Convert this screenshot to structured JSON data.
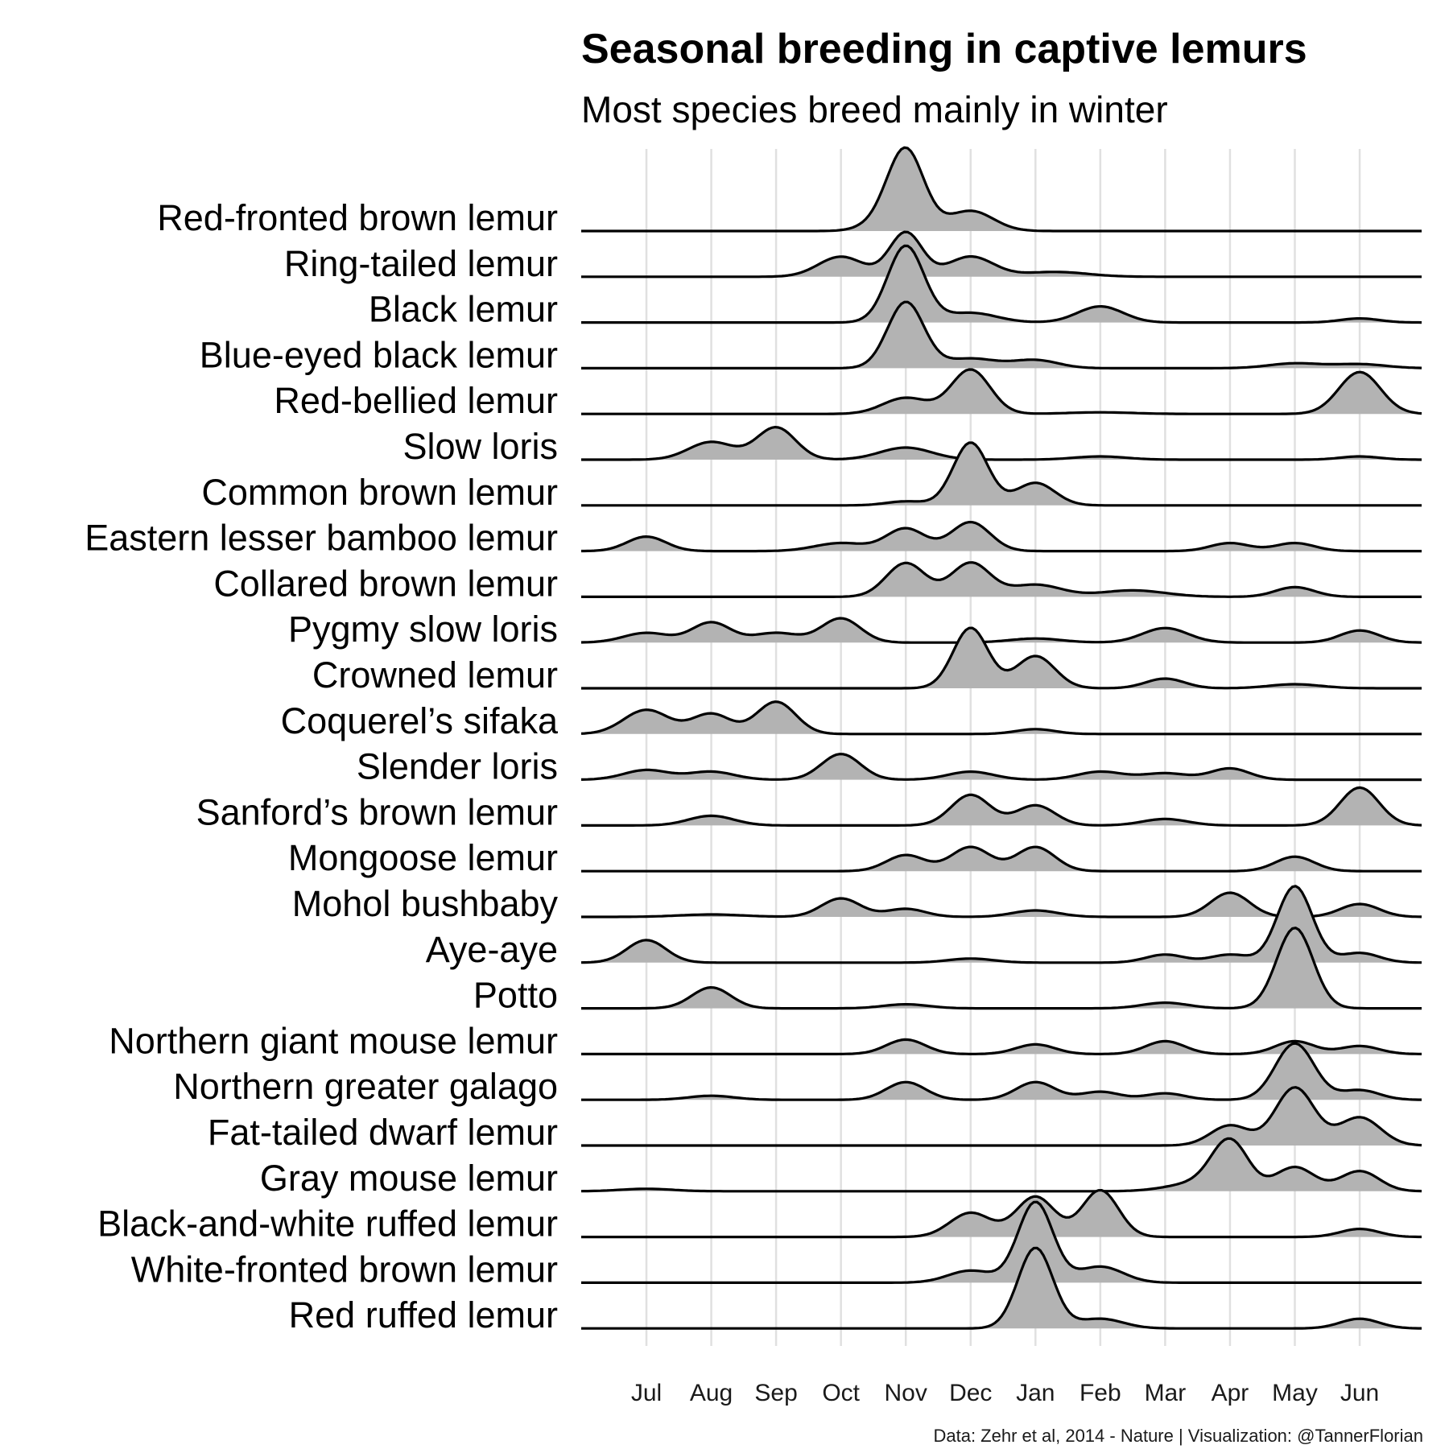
{
  "chart_data": {
    "type": "ridgeline",
    "title": "Seasonal breeding in captive lemurs",
    "subtitle": "Most species breed mainly in winter",
    "caption": "Data: Zehr et al, 2014 - Nature | Visualization: @TannerFlorian",
    "months": [
      "Jul",
      "Aug",
      "Sep",
      "Oct",
      "Nov",
      "Dec",
      "Jan",
      "Feb",
      "Mar",
      "Apr",
      "May",
      "Jun"
    ],
    "fill_color": "#b3b3b3",
    "line_color": "#000000",
    "grid_color": "#e0e0e0",
    "grid": true,
    "x_range": [
      -1,
      12
    ],
    "peaks_unit": "month index (0 = Jul) with relative density height",
    "species": [
      {
        "name": "Red-fronted brown lemur",
        "peaks": [
          [
            4,
            1.0,
            0.28
          ],
          [
            5,
            0.25,
            0.35
          ],
          [
            3.6,
            0.08,
            0.3
          ]
        ]
      },
      {
        "name": "Ring-tailed lemur",
        "peaks": [
          [
            3,
            0.25,
            0.35
          ],
          [
            4,
            0.55,
            0.25
          ],
          [
            5,
            0.25,
            0.35
          ],
          [
            6.3,
            0.06,
            0.5
          ]
        ]
      },
      {
        "name": "Black lemur",
        "peaks": [
          [
            4,
            0.95,
            0.28
          ],
          [
            5,
            0.12,
            0.4
          ],
          [
            7,
            0.2,
            0.35
          ],
          [
            11,
            0.05,
            0.3
          ]
        ]
      },
      {
        "name": "Blue-eyed black lemur",
        "peaks": [
          [
            4,
            0.82,
            0.28
          ],
          [
            5,
            0.12,
            0.4
          ],
          [
            6,
            0.1,
            0.35
          ],
          [
            10,
            0.06,
            0.4
          ],
          [
            11,
            0.05,
            0.4
          ]
        ]
      },
      {
        "name": "Red-bellied lemur",
        "peaks": [
          [
            4,
            0.2,
            0.35
          ],
          [
            5,
            0.55,
            0.3
          ],
          [
            7,
            0.02,
            0.5
          ],
          [
            11,
            0.52,
            0.32
          ]
        ]
      },
      {
        "name": "Slow loris",
        "peaks": [
          [
            1,
            0.22,
            0.35
          ],
          [
            2,
            0.4,
            0.3
          ],
          [
            4,
            0.15,
            0.4
          ],
          [
            7,
            0.04,
            0.4
          ],
          [
            11,
            0.04,
            0.3
          ]
        ]
      },
      {
        "name": "Common brown lemur",
        "peaks": [
          [
            5,
            0.78,
            0.27
          ],
          [
            6,
            0.28,
            0.3
          ],
          [
            4,
            0.05,
            0.3
          ]
        ]
      },
      {
        "name": "Eastern lesser bamboo lemur",
        "peaks": [
          [
            0,
            0.18,
            0.3
          ],
          [
            3,
            0.1,
            0.4
          ],
          [
            4,
            0.28,
            0.3
          ],
          [
            5,
            0.36,
            0.3
          ],
          [
            9,
            0.1,
            0.3
          ],
          [
            10,
            0.1,
            0.3
          ]
        ]
      },
      {
        "name": "Collared brown lemur",
        "peaks": [
          [
            4,
            0.42,
            0.3
          ],
          [
            5,
            0.42,
            0.3
          ],
          [
            6,
            0.15,
            0.4
          ],
          [
            7.5,
            0.08,
            0.5
          ],
          [
            10,
            0.12,
            0.3
          ]
        ]
      },
      {
        "name": "Pygmy slow loris",
        "peaks": [
          [
            0,
            0.12,
            0.35
          ],
          [
            1,
            0.25,
            0.3
          ],
          [
            2,
            0.12,
            0.35
          ],
          [
            3,
            0.3,
            0.3
          ],
          [
            6,
            0.05,
            0.4
          ],
          [
            8,
            0.18,
            0.35
          ],
          [
            11,
            0.15,
            0.3
          ]
        ]
      },
      {
        "name": "Crowned lemur",
        "peaks": [
          [
            5,
            0.75,
            0.27
          ],
          [
            6,
            0.4,
            0.3
          ],
          [
            8,
            0.12,
            0.3
          ],
          [
            10,
            0.05,
            0.4
          ]
        ]
      },
      {
        "name": "Coquerel’s sifaka",
        "peaks": [
          [
            0,
            0.3,
            0.35
          ],
          [
            1,
            0.25,
            0.3
          ],
          [
            2,
            0.4,
            0.3
          ],
          [
            6,
            0.06,
            0.3
          ]
        ]
      },
      {
        "name": "Slender loris",
        "peaks": [
          [
            0,
            0.12,
            0.35
          ],
          [
            1,
            0.1,
            0.35
          ],
          [
            3,
            0.32,
            0.3
          ],
          [
            5,
            0.1,
            0.35
          ],
          [
            7,
            0.1,
            0.35
          ],
          [
            8,
            0.08,
            0.35
          ],
          [
            9,
            0.14,
            0.3
          ]
        ]
      },
      {
        "name": "Sanford’s brown lemur",
        "peaks": [
          [
            1,
            0.12,
            0.35
          ],
          [
            5,
            0.38,
            0.3
          ],
          [
            6,
            0.25,
            0.3
          ],
          [
            8,
            0.08,
            0.35
          ],
          [
            11,
            0.47,
            0.3
          ]
        ]
      },
      {
        "name": "Mongoose lemur",
        "peaks": [
          [
            4,
            0.2,
            0.3
          ],
          [
            5,
            0.3,
            0.3
          ],
          [
            6,
            0.3,
            0.3
          ],
          [
            10,
            0.18,
            0.3
          ]
        ]
      },
      {
        "name": "Mohol bushbaby",
        "peaks": [
          [
            1,
            0.03,
            0.5
          ],
          [
            3,
            0.23,
            0.3
          ],
          [
            4,
            0.1,
            0.3
          ],
          [
            6,
            0.08,
            0.35
          ],
          [
            9,
            0.3,
            0.3
          ],
          [
            11,
            0.16,
            0.3
          ]
        ]
      },
      {
        "name": "Aye-aye",
        "peaks": [
          [
            0,
            0.28,
            0.3
          ],
          [
            5,
            0.05,
            0.35
          ],
          [
            8,
            0.1,
            0.3
          ],
          [
            9,
            0.1,
            0.3
          ],
          [
            10,
            0.95,
            0.27
          ],
          [
            11,
            0.12,
            0.3
          ]
        ]
      },
      {
        "name": "Potto",
        "peaks": [
          [
            1,
            0.26,
            0.3
          ],
          [
            4,
            0.05,
            0.35
          ],
          [
            8,
            0.07,
            0.35
          ],
          [
            10,
            1.0,
            0.28
          ]
        ]
      },
      {
        "name": "Northern giant mouse lemur",
        "peaks": [
          [
            4,
            0.18,
            0.3
          ],
          [
            6,
            0.12,
            0.3
          ],
          [
            8,
            0.16,
            0.3
          ],
          [
            10,
            0.16,
            0.3
          ],
          [
            11,
            0.1,
            0.3
          ]
        ]
      },
      {
        "name": "Northern greater galago",
        "peaks": [
          [
            1,
            0.05,
            0.35
          ],
          [
            4,
            0.22,
            0.3
          ],
          [
            6,
            0.22,
            0.3
          ],
          [
            7,
            0.1,
            0.3
          ],
          [
            8,
            0.08,
            0.3
          ],
          [
            10,
            0.7,
            0.3
          ],
          [
            11,
            0.12,
            0.3
          ]
        ]
      },
      {
        "name": "Fat-tailed dwarf lemur",
        "peaks": [
          [
            9,
            0.25,
            0.3
          ],
          [
            10,
            0.72,
            0.3
          ],
          [
            11,
            0.35,
            0.32
          ]
        ]
      },
      {
        "name": "Gray mouse lemur",
        "peaks": [
          [
            0,
            0.03,
            0.4
          ],
          [
            8.5,
            0.1,
            0.45
          ],
          [
            9,
            0.6,
            0.28
          ],
          [
            10,
            0.3,
            0.3
          ],
          [
            11,
            0.25,
            0.3
          ]
        ]
      },
      {
        "name": "Black-and-white ruffed lemur",
        "peaks": [
          [
            5,
            0.3,
            0.32
          ],
          [
            6,
            0.5,
            0.3
          ],
          [
            7,
            0.58,
            0.28
          ],
          [
            11,
            0.1,
            0.3
          ]
        ]
      },
      {
        "name": "White-fronted brown lemur",
        "peaks": [
          [
            5,
            0.15,
            0.35
          ],
          [
            6,
            1.0,
            0.27
          ],
          [
            7,
            0.2,
            0.35
          ]
        ]
      },
      {
        "name": "Red ruffed lemur",
        "peaks": [
          [
            6,
            1.0,
            0.27
          ],
          [
            7,
            0.12,
            0.35
          ],
          [
            11,
            0.12,
            0.3
          ]
        ]
      }
    ]
  }
}
